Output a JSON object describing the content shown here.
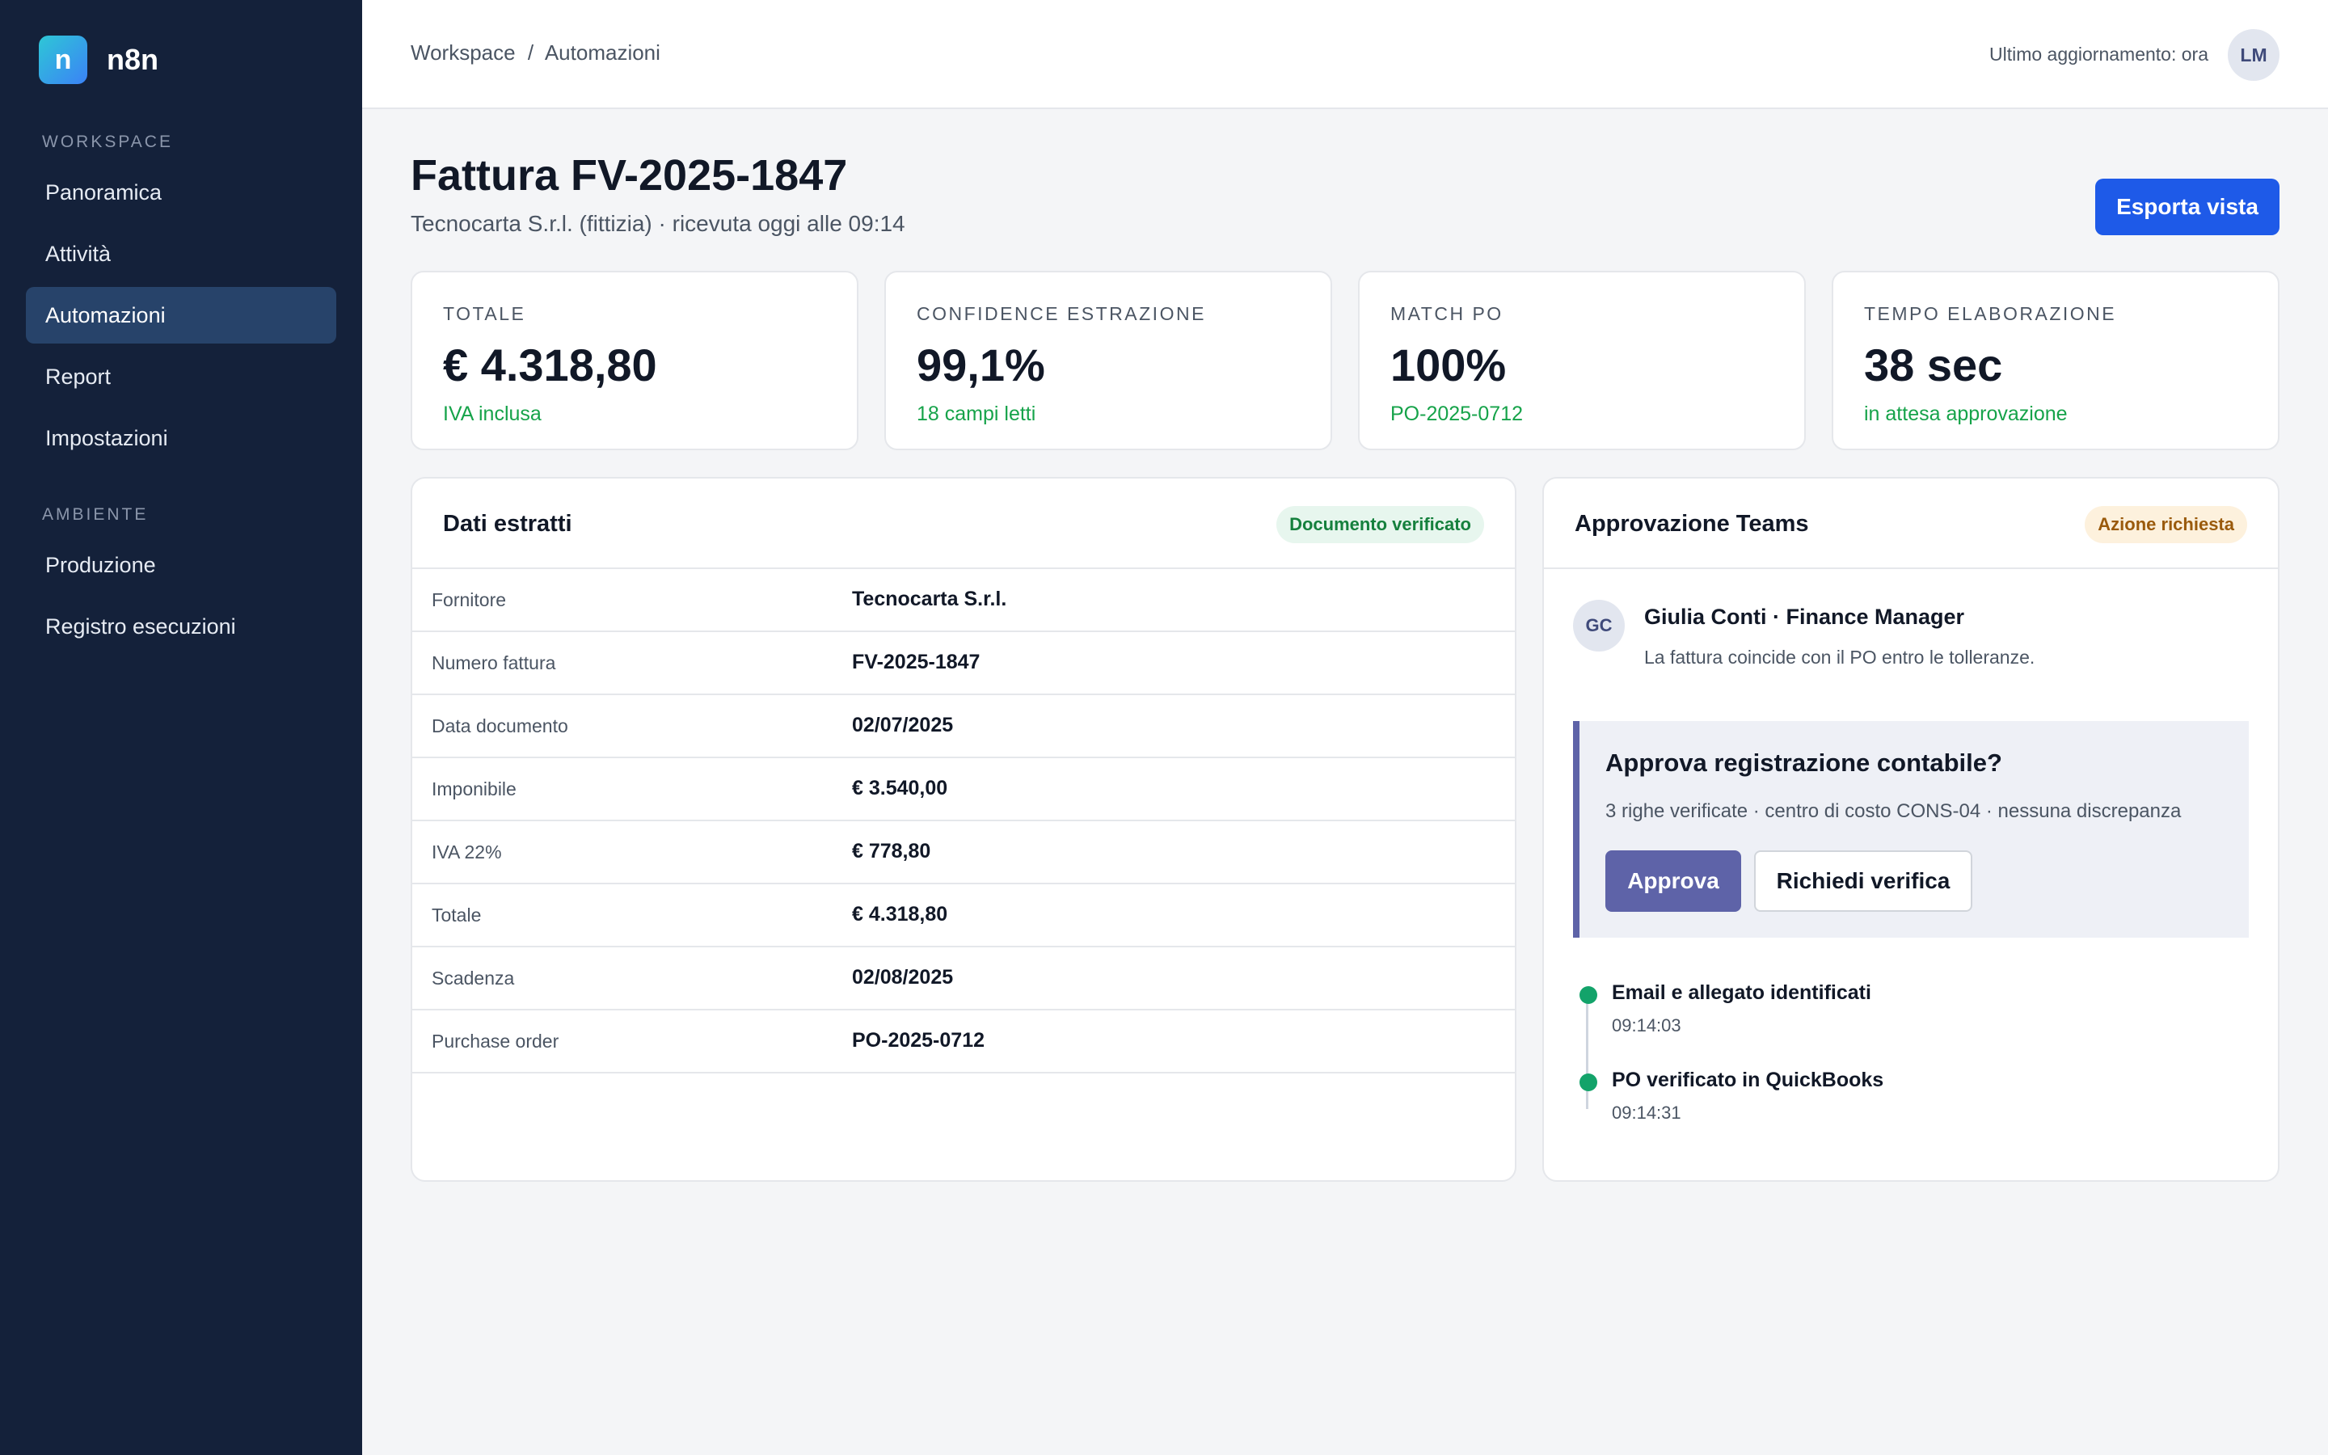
{
  "brand": {
    "logo_letter": "n",
    "name": "n8n"
  },
  "sidebar": {
    "sections": [
      {
        "label": "WORKSPACE",
        "items": [
          {
            "label": "Panoramica",
            "active": false
          },
          {
            "label": "Attività",
            "active": false
          },
          {
            "label": "Automazioni",
            "active": true
          },
          {
            "label": "Report",
            "active": false
          },
          {
            "label": "Impostazioni",
            "active": false
          }
        ]
      },
      {
        "label": "AMBIENTE",
        "items": [
          {
            "label": "Produzione",
            "active": false
          },
          {
            "label": "Registro esecuzioni",
            "active": false
          }
        ]
      }
    ]
  },
  "topbar": {
    "breadcrumb": [
      "Workspace",
      "Automazioni"
    ],
    "breadcrumb_separator": "/",
    "last_update": "Ultimo aggiornamento: ora",
    "user_initials": "LM"
  },
  "header": {
    "title": "Fattura FV-2025-1847",
    "subtitle": "Tecnocarta S.r.l. (fittizia) · ricevuta oggi alle 09:14",
    "export_label": "Esporta vista"
  },
  "kpis": [
    {
      "label": "TOTALE",
      "value": "€ 4.318,80",
      "note": "IVA inclusa"
    },
    {
      "label": "CONFIDENCE ESTRAZIONE",
      "value": "99,1%",
      "note": "18 campi letti"
    },
    {
      "label": "MATCH PO",
      "value": "100%",
      "note": "PO-2025-0712"
    },
    {
      "label": "TEMPO ELABORAZIONE",
      "value": "38 sec",
      "note": "in attesa approvazione"
    }
  ],
  "extracted": {
    "title": "Dati estratti",
    "badge": "Documento verificato",
    "rows": [
      {
        "key": "Fornitore",
        "value": "Tecnocarta S.r.l."
      },
      {
        "key": "Numero fattura",
        "value": "FV-2025-1847"
      },
      {
        "key": "Data documento",
        "value": "02/07/2025"
      },
      {
        "key": "Imponibile",
        "value": "€ 3.540,00"
      },
      {
        "key": "IVA 22%",
        "value": "€ 778,80"
      },
      {
        "key": "Totale",
        "value": "€ 4.318,80"
      },
      {
        "key": "Scadenza",
        "value": "02/08/2025"
      },
      {
        "key": "Purchase order",
        "value": "PO-2025-0712"
      }
    ]
  },
  "approval": {
    "title": "Approvazione Teams",
    "badge": "Azione richiesta",
    "approver_initials": "GC",
    "approver_name": "Giulia Conti · Finance Manager",
    "approver_message": "La fattura coincide con il PO entro le tolleranze.",
    "card_question": "Approva registrazione contabile?",
    "card_detail": "3 righe verificate · centro di costo CONS-04 · nessuna discrepanza",
    "approve_label": "Approva",
    "verify_label": "Richiedi verifica",
    "timeline": [
      {
        "title": "Email e allegato identificati",
        "time": "09:14:03"
      },
      {
        "title": "PO verificato in QuickBooks",
        "time": "09:14:31"
      }
    ]
  },
  "colors": {
    "sidebar_bg": "#14213a",
    "active_nav": "#27436a",
    "primary": "#1e5ae8",
    "approve": "#5e63a8",
    "success": "#16a34a"
  }
}
